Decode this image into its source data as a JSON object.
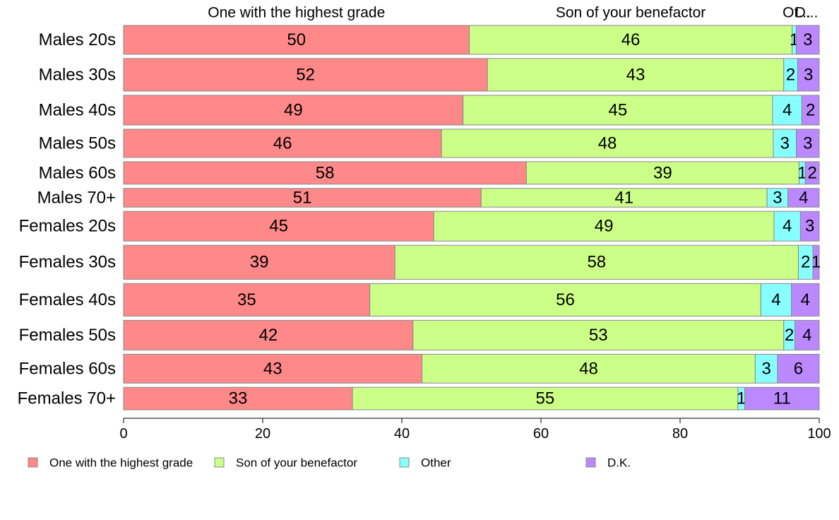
{
  "chart_data": {
    "type": "bar",
    "orientation": "horizontal",
    "stacked": true,
    "xlim": [
      0,
      100
    ],
    "x_ticks": [
      0,
      20,
      40,
      60,
      80,
      100
    ],
    "grid": false,
    "legend_position": "bottom",
    "column_headers": [
      "One with the highest grade",
      "Son of your benefactor",
      "Ot...",
      "D..."
    ],
    "categories": [
      "Males 20s",
      "Males 30s",
      "Males 40s",
      "Males 50s",
      "Males 60s",
      "Males 70+",
      "Females 20s",
      "Females 30s",
      "Females 40s",
      "Females 50s",
      "Females 60s",
      "Females 70+"
    ],
    "category_weights": [
      1.0,
      1.13,
      1.03,
      0.98,
      0.78,
      0.65,
      1.03,
      1.18,
      1.13,
      1.03,
      1.0,
      0.78
    ],
    "series": [
      {
        "name": "One with the highest grade",
        "color": "#ff8888",
        "values": [
          49.7,
          52.3,
          48.8,
          45.7,
          57.9,
          51.4,
          44.6,
          39.0,
          35.4,
          41.6,
          42.9,
          32.9
        ]
      },
      {
        "name": "Son of your benefactor",
        "color": "#ccff88",
        "values": [
          46.4,
          42.6,
          44.5,
          47.7,
          39.2,
          41.1,
          48.9,
          58.0,
          56.2,
          53.3,
          47.9,
          55.4
        ]
      },
      {
        "name": "Other",
        "color": "#88ffff",
        "values": [
          0.6,
          2.0,
          4.2,
          3.3,
          0.9,
          3.0,
          3.8,
          2.1,
          4.4,
          1.6,
          3.2,
          1.0
        ]
      },
      {
        "name": "D.K.",
        "color": "#bb88ff",
        "values": [
          3.3,
          3.1,
          2.5,
          3.3,
          2.0,
          4.5,
          2.7,
          0.9,
          4.0,
          3.5,
          6.0,
          10.7
        ]
      }
    ],
    "labels": [
      [
        "50",
        "46",
        "1",
        "3"
      ],
      [
        "52",
        "43",
        "2",
        "3"
      ],
      [
        "49",
        "45",
        "4",
        "2"
      ],
      [
        "46",
        "48",
        "3",
        "3"
      ],
      [
        "58",
        "39",
        "1",
        "2"
      ],
      [
        "51",
        "41",
        "3",
        "4"
      ],
      [
        "45",
        "49",
        "4",
        "3"
      ],
      [
        "39",
        "58",
        "2",
        "1"
      ],
      [
        "35",
        "56",
        "4",
        "4"
      ],
      [
        "42",
        "53",
        "2",
        "4"
      ],
      [
        "43",
        "48",
        "3",
        "6"
      ],
      [
        "33",
        "55",
        "1",
        "11"
      ]
    ]
  }
}
